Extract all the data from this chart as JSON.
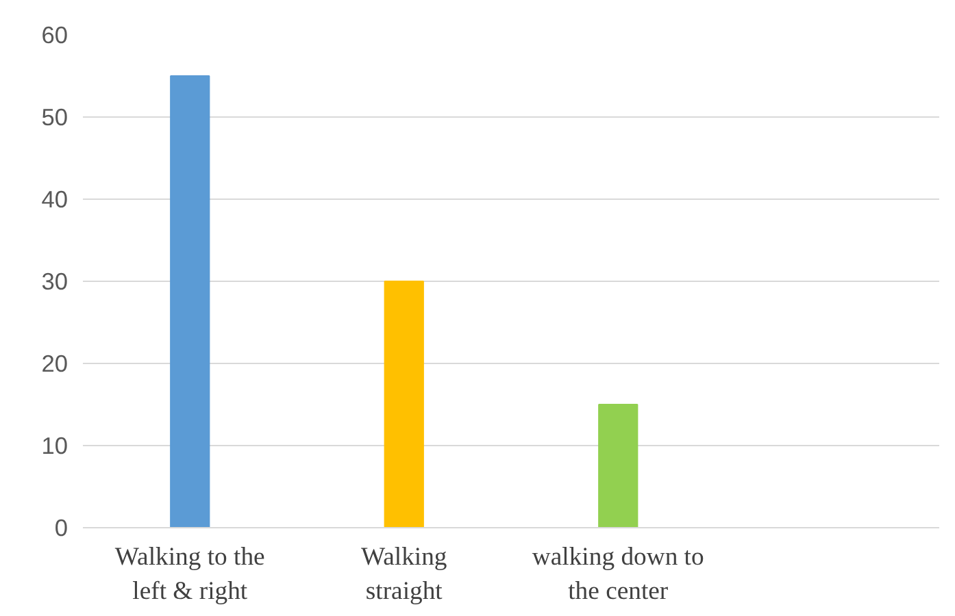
{
  "chart_data": {
    "type": "bar",
    "categories": [
      "Walking to the left & right",
      "Walking straight",
      "walking down to the center",
      null
    ],
    "values": [
      55,
      30,
      15,
      null
    ],
    "colors": [
      "#5b9bd5",
      "#ffc000",
      "#92d050",
      "#a5a5a5"
    ],
    "ylim": [
      0,
      60
    ],
    "yticks": [
      0,
      10,
      20,
      30,
      40,
      50,
      60
    ],
    "grid": "y"
  }
}
